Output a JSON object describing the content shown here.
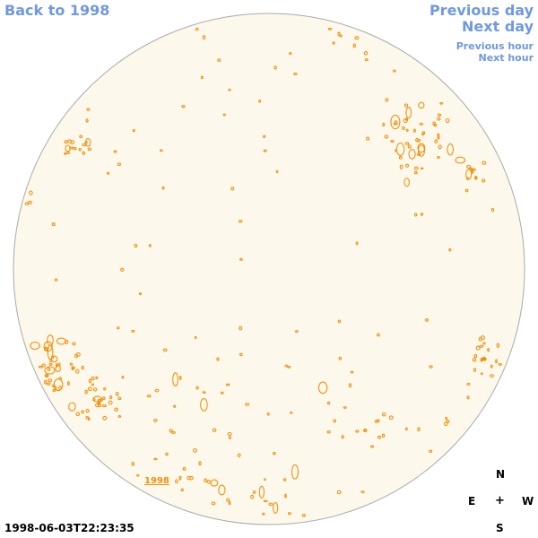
{
  "nav": {
    "back_label": "Back to 1998",
    "previous_day_label": "Previous day",
    "next_day_label": "Next day",
    "previous_hour_label": "Previous hour",
    "next_hour_label": "Next hour"
  },
  "disk": {
    "year_label": "1998",
    "fill_color": "#fdf8ec",
    "contour_color": "#f2920c"
  },
  "compass": {
    "n": "N",
    "e": "E",
    "center": "+",
    "w": "W",
    "s": "S"
  },
  "timestamp": "1998-06-03T22:23:35",
  "colors": {
    "link": "#6f98e2",
    "limb": "#aaaaaa"
  }
}
